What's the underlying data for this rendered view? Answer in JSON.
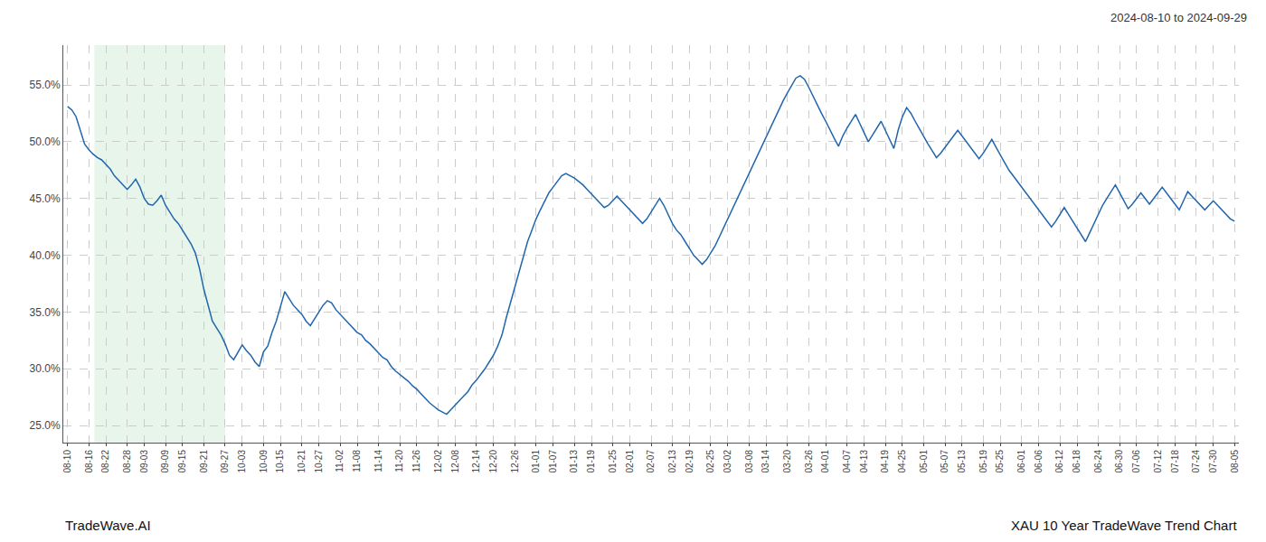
{
  "chart_data": {
    "type": "line",
    "title": "2024-08-10 to 2024-09-29",
    "annotations": [
      "TradeWave.AI",
      "XAU 10 Year TradeWave Trend Chart"
    ],
    "color": "#2166ac",
    "grid": true,
    "ylim": [
      0.235,
      0.585
    ],
    "yticks": [
      {
        "value": 0.25,
        "label": "25.0%"
      },
      {
        "value": 0.3,
        "label": "30.0%"
      },
      {
        "value": 0.35,
        "label": "35.0%"
      },
      {
        "value": 0.4,
        "label": "40.0%"
      },
      {
        "value": 0.45,
        "label": "45.0%"
      },
      {
        "value": 0.5,
        "label": "50.0%"
      },
      {
        "value": 0.55,
        "label": "55.0%"
      }
    ],
    "shade": {
      "x": [
        6.302,
        36.99
      ],
      "color": "#d4edda"
    },
    "categories": [
      "08-10",
      null,
      null,
      null,
      null,
      "08-16",
      null,
      null,
      null,
      "08-22",
      null,
      null,
      null,
      null,
      "08-28",
      null,
      null,
      null,
      "09-03",
      null,
      null,
      null,
      null,
      "09-09",
      null,
      null,
      null,
      "09-15",
      null,
      null,
      null,
      null,
      "09-21",
      null,
      null,
      null,
      null,
      "09-27",
      null,
      null,
      null,
      "10-03",
      null,
      null,
      null,
      null,
      "10-09",
      null,
      null,
      null,
      "10-15",
      null,
      null,
      null,
      null,
      "10-21",
      null,
      null,
      null,
      "10-27",
      null,
      null,
      null,
      null,
      "11-02",
      null,
      null,
      null,
      "11-08",
      null,
      null,
      null,
      null,
      "11-14",
      null,
      null,
      null,
      null,
      "11-20",
      null,
      null,
      null,
      "11-26",
      null,
      null,
      null,
      null,
      "12-02",
      null,
      null,
      null,
      "12-08",
      null,
      null,
      null,
      null,
      "12-14",
      null,
      null,
      null,
      "12-20",
      null,
      null,
      null,
      null,
      "12-26",
      null,
      null,
      null,
      null,
      "01-01",
      null,
      null,
      null,
      "01-07",
      null,
      null,
      null,
      null,
      "01-13",
      null,
      null,
      null,
      "01-19",
      null,
      null,
      null,
      null,
      "01-25",
      null,
      null,
      null,
      "02-01",
      null,
      null,
      null,
      null,
      "02-07",
      null,
      null,
      null,
      null,
      "02-13",
      null,
      null,
      null,
      "02-19",
      null,
      null,
      null,
      null,
      "02-25",
      null,
      null,
      null,
      "03-02",
      null,
      null,
      null,
      null,
      "03-08",
      null,
      null,
      null,
      "03-14",
      null,
      null,
      null,
      null,
      "03-20",
      null,
      null,
      null,
      null,
      "03-26",
      null,
      null,
      null,
      "04-01",
      null,
      null,
      null,
      null,
      "04-07",
      null,
      null,
      null,
      "04-13",
      null,
      null,
      null,
      null,
      "04-19",
      null,
      null,
      null,
      "04-25",
      null,
      null,
      null,
      null,
      "05-01",
      null,
      null,
      null,
      null,
      "05-07",
      null,
      null,
      null,
      "05-13",
      null,
      null,
      null,
      null,
      "05-19",
      null,
      null,
      null,
      "05-25",
      null,
      null,
      null,
      null,
      "06-01",
      null,
      null,
      null,
      "06-06",
      null,
      null,
      null,
      null,
      "06-12",
      null,
      null,
      null,
      "06-18",
      null,
      null,
      null,
      null,
      "06-24",
      null,
      null,
      null,
      null,
      "06-30",
      null,
      null,
      null,
      "07-06",
      null,
      null,
      null,
      null,
      "07-12",
      null,
      null,
      null,
      "07-18",
      null,
      null,
      null,
      null,
      "07-24",
      null,
      null,
      null,
      "07-30",
      null,
      null,
      null,
      null,
      "08-05"
    ],
    "values": [
      0.531,
      0.528,
      0.522,
      0.51,
      0.498,
      0.493,
      0.489,
      0.486,
      0.484,
      0.48,
      0.476,
      0.47,
      0.466,
      0.462,
      0.458,
      0.462,
      0.467,
      0.46,
      0.45,
      0.445,
      0.444,
      0.448,
      0.453,
      0.444,
      0.438,
      0.432,
      0.428,
      0.422,
      0.416,
      0.41,
      0.402,
      0.388,
      0.37,
      0.355,
      0.342,
      0.336,
      0.33,
      0.322,
      0.312,
      0.308,
      0.315,
      0.321,
      0.316,
      0.312,
      0.306,
      0.302,
      0.315,
      0.32,
      0.332,
      0.342,
      0.355,
      0.368,
      0.362,
      0.356,
      0.352,
      0.348,
      0.342,
      0.338,
      0.344,
      0.35,
      0.356,
      0.36,
      0.358,
      0.352,
      0.348,
      0.344,
      0.34,
      0.336,
      0.332,
      0.33,
      0.325,
      0.322,
      0.318,
      0.314,
      0.31,
      0.308,
      0.302,
      0.298,
      0.295,
      0.292,
      0.289,
      0.285,
      0.282,
      0.278,
      0.274,
      0.27,
      0.267,
      0.264,
      0.262,
      0.26,
      0.264,
      0.268,
      0.272,
      0.276,
      0.28,
      0.286,
      0.29,
      0.295,
      0.3,
      0.306,
      0.312,
      0.32,
      0.33,
      0.345,
      0.358,
      0.372,
      0.385,
      0.398,
      0.412,
      0.422,
      0.432,
      0.44,
      0.448,
      0.455,
      0.46,
      0.465,
      0.47,
      0.472,
      0.47,
      0.468,
      0.465,
      0.462,
      0.458,
      0.454,
      0.45,
      0.446,
      0.442,
      0.444,
      0.448,
      0.452,
      0.448,
      0.444,
      0.44,
      0.436,
      0.432,
      0.428,
      0.432,
      0.438,
      0.444,
      0.45,
      0.444,
      0.436,
      0.428,
      0.422,
      0.418,
      0.412,
      0.406,
      0.4,
      0.396,
      0.392,
      0.396,
      0.402,
      0.408,
      0.416,
      0.424,
      0.432,
      0.44,
      0.448,
      0.456,
      0.464,
      0.472,
      0.48,
      0.488,
      0.496,
      0.505,
      0.512,
      0.52,
      0.528,
      0.536,
      0.543,
      0.55,
      0.556,
      0.558,
      0.555,
      0.548,
      0.54,
      0.533,
      0.525,
      0.518,
      0.51,
      0.503,
      0.496,
      0.505,
      0.512,
      0.518,
      0.524,
      0.516,
      0.508,
      0.5,
      0.506,
      0.512,
      0.518,
      0.51,
      0.502,
      0.494,
      0.51,
      0.522,
      0.53,
      0.525,
      0.518,
      0.511,
      0.504,
      0.498,
      0.492,
      0.486,
      0.49,
      0.495,
      0.5,
      0.505,
      0.51,
      0.505,
      0.5,
      0.495,
      0.49,
      0.485,
      0.49,
      0.496,
      0.502,
      0.495,
      0.488,
      0.481,
      0.475,
      0.47,
      0.465,
      0.46,
      0.455,
      0.45,
      0.445,
      0.44,
      0.435,
      0.43,
      0.425,
      0.43,
      0.436,
      0.442,
      0.436,
      0.43,
      0.424,
      0.418,
      0.412,
      0.42,
      0.428,
      0.436,
      0.444,
      0.45,
      0.456,
      0.462,
      0.455,
      0.448,
      0.441,
      0.445,
      0.45,
      0.455,
      0.45,
      0.445,
      0.45,
      0.455,
      0.46,
      0.455,
      0.45,
      0.445,
      0.44,
      0.448,
      0.456,
      0.452,
      0.448,
      0.444,
      0.44,
      0.444,
      0.448,
      0.444,
      0.44,
      0.436,
      0.432,
      0.43
    ]
  }
}
